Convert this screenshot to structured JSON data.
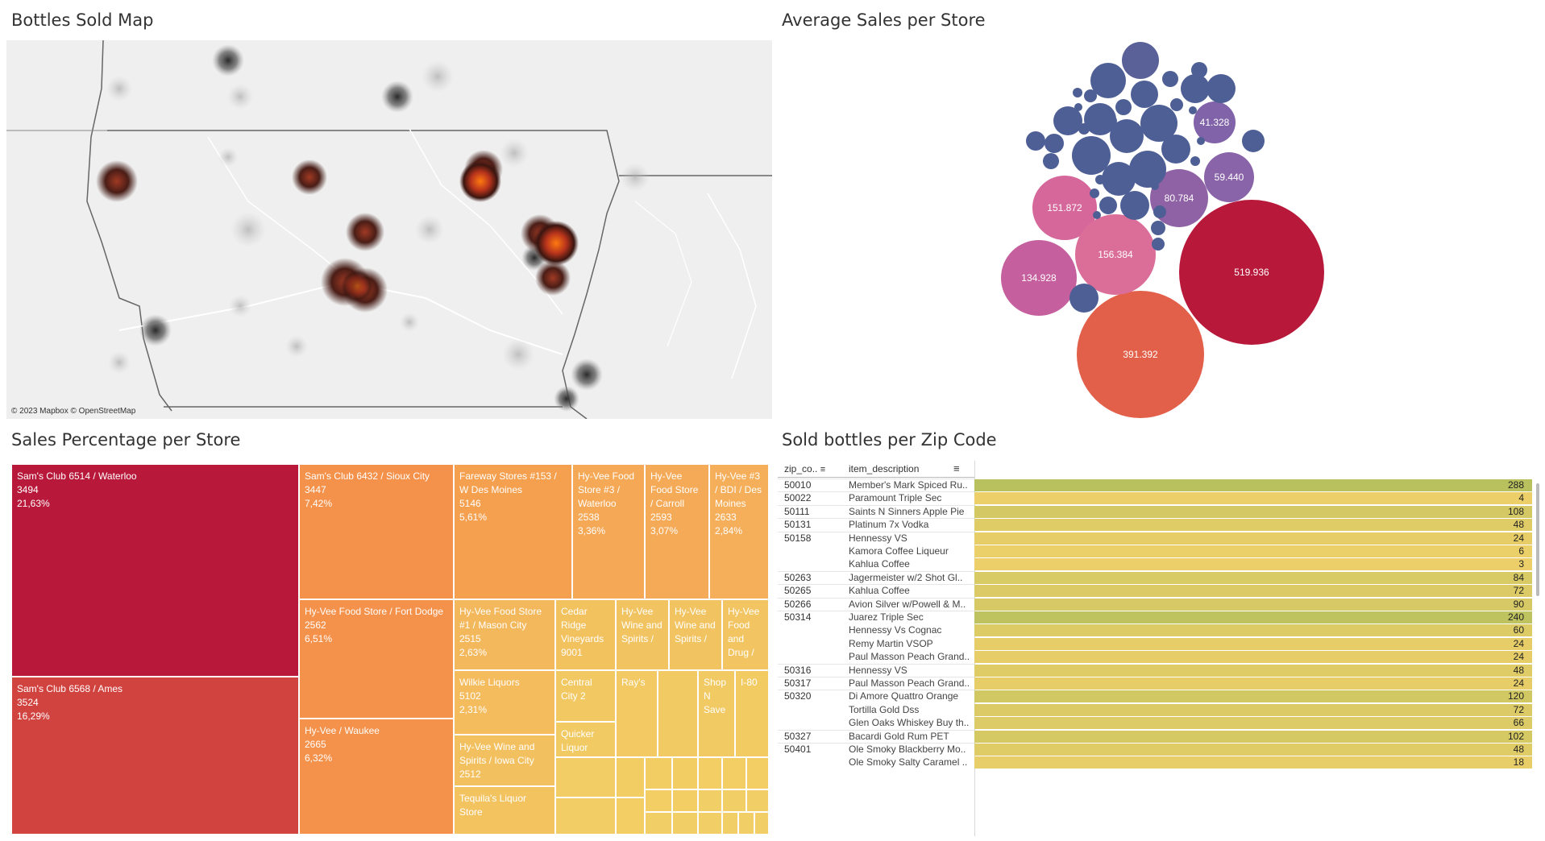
{
  "titles": {
    "map": "Bottles Sold Map",
    "bubbles": "Average Sales per Store",
    "treemap": "Sales Percentage per Store",
    "table": "Sold bottles per Zip Code"
  },
  "map": {
    "attribution": "© 2023 Mapbox © OpenStreetMap"
  },
  "bubble_labels": [
    "41.328",
    "59.440",
    "80.784",
    "151.872",
    "156.384",
    "134.928",
    "519.936",
    "391.392"
  ],
  "treemap": {
    "cells": [
      {
        "name": "Sam's Club 6514 / Waterloo",
        "value": "3494",
        "pct": "21,63%"
      },
      {
        "name": "Sam's Club 6568 / Ames",
        "value": "3524",
        "pct": "16,29%"
      },
      {
        "name": "Sam's Club 6432 / Sioux City",
        "value": "3447",
        "pct": "7,42%"
      },
      {
        "name": "Hy-Vee Food Store / Fort Dodge",
        "value": "2562",
        "pct": "6,51%"
      },
      {
        "name": "Hy-Vee / Waukee",
        "value": "2665",
        "pct": "6,32%"
      },
      {
        "name": "Fareway Stores #153 / W Des Moines",
        "value": "5146",
        "pct": "5,61%"
      },
      {
        "name": "Hy-Vee Food Store #3 / Waterloo",
        "value": "2538",
        "pct": "3,36%"
      },
      {
        "name": "Hy-Vee Food Store / Carroll",
        "value": "2593",
        "pct": "3,07%"
      },
      {
        "name": "Hy-Vee #3 / BDI / Des Moines",
        "value": "2633",
        "pct": "2,84%"
      },
      {
        "name": "Hy-Vee Food Store #1 / Mason City",
        "value": "2515",
        "pct": "2,63%"
      },
      {
        "name": "Cedar Ridge Vineyards",
        "value": "9001",
        "pct": ""
      },
      {
        "name": "Hy-Vee Wine and Spirits /",
        "value": "",
        "pct": ""
      },
      {
        "name": "Hy-Vee Wine and Spirits /",
        "value": "",
        "pct": ""
      },
      {
        "name": "Hy-Vee Food and Drug /",
        "value": "",
        "pct": ""
      },
      {
        "name": "Wilkie Liquors",
        "value": "5102",
        "pct": "2,31%"
      },
      {
        "name": "Central City 2",
        "value": "",
        "pct": ""
      },
      {
        "name": "Ray's",
        "value": "",
        "pct": ""
      },
      {
        "name": "Shop N Save",
        "value": "",
        "pct": ""
      },
      {
        "name": "I-80",
        "value": "",
        "pct": ""
      },
      {
        "name": "Quicker Liquor",
        "value": "",
        "pct": ""
      },
      {
        "name": "Hy-Vee Wine and Spirits / Iowa City",
        "value": "2512",
        "pct": ""
      },
      {
        "name": "Tequila's Liquor Store",
        "value": "",
        "pct": ""
      }
    ]
  },
  "table": {
    "col_zip": "zip_co..",
    "col_item": "item_description",
    "rows": [
      {
        "zip": "50010",
        "item": "Member's Mark Spiced Ru..",
        "value": "288"
      },
      {
        "zip": "50022",
        "item": "Paramount Triple Sec",
        "value": "4"
      },
      {
        "zip": "50111",
        "item": "Saints N Sinners Apple Pie",
        "value": "108"
      },
      {
        "zip": "50131",
        "item": "Platinum 7x Vodka",
        "value": "48"
      },
      {
        "zip": "50158",
        "item": "Hennessy VS",
        "value": "24"
      },
      {
        "zip": "",
        "item": "Kamora Coffee Liqueur",
        "value": "6"
      },
      {
        "zip": "",
        "item": "Kahlua Coffee",
        "value": "3"
      },
      {
        "zip": "50263",
        "item": "Jagermeister w/2 Shot Gl..",
        "value": "84"
      },
      {
        "zip": "50265",
        "item": "Kahlua Coffee",
        "value": "72"
      },
      {
        "zip": "50266",
        "item": "Avion Silver w/Powell & M..",
        "value": "90"
      },
      {
        "zip": "50314",
        "item": "Juarez Triple Sec",
        "value": "240"
      },
      {
        "zip": "",
        "item": "Hennessy Vs Cognac",
        "value": "60"
      },
      {
        "zip": "",
        "item": "Remy Martin VSOP",
        "value": "24"
      },
      {
        "zip": "",
        "item": "Paul Masson Peach Grand..",
        "value": "24"
      },
      {
        "zip": "50316",
        "item": "Hennessy VS",
        "value": "48"
      },
      {
        "zip": "50317",
        "item": "Paul Masson Peach Grand..",
        "value": "24"
      },
      {
        "zip": "50320",
        "item": "Di Amore Quattro Orange",
        "value": "120"
      },
      {
        "zip": "",
        "item": "Tortilla Gold Dss",
        "value": "72"
      },
      {
        "zip": "",
        "item": "Glen Oaks Whiskey Buy th..",
        "value": "66"
      },
      {
        "zip": "50327",
        "item": "Bacardi Gold Rum PET",
        "value": "102"
      },
      {
        "zip": "50401",
        "item": "Ole Smoky Blackberry Mo..",
        "value": "48"
      },
      {
        "zip": "",
        "item": "Ole Smoky Salty Caramel ..",
        "value": "18"
      }
    ]
  },
  "colors": {
    "dark_red": "#b8193b",
    "red": "#d1433f",
    "orange": "#f4914a",
    "light_orange": "#f5a755",
    "yellow": "#f2cb62",
    "bubble_blue": "#4e5f96",
    "bar_high": "#b9c15e",
    "bar_low": "#efd06a"
  }
}
